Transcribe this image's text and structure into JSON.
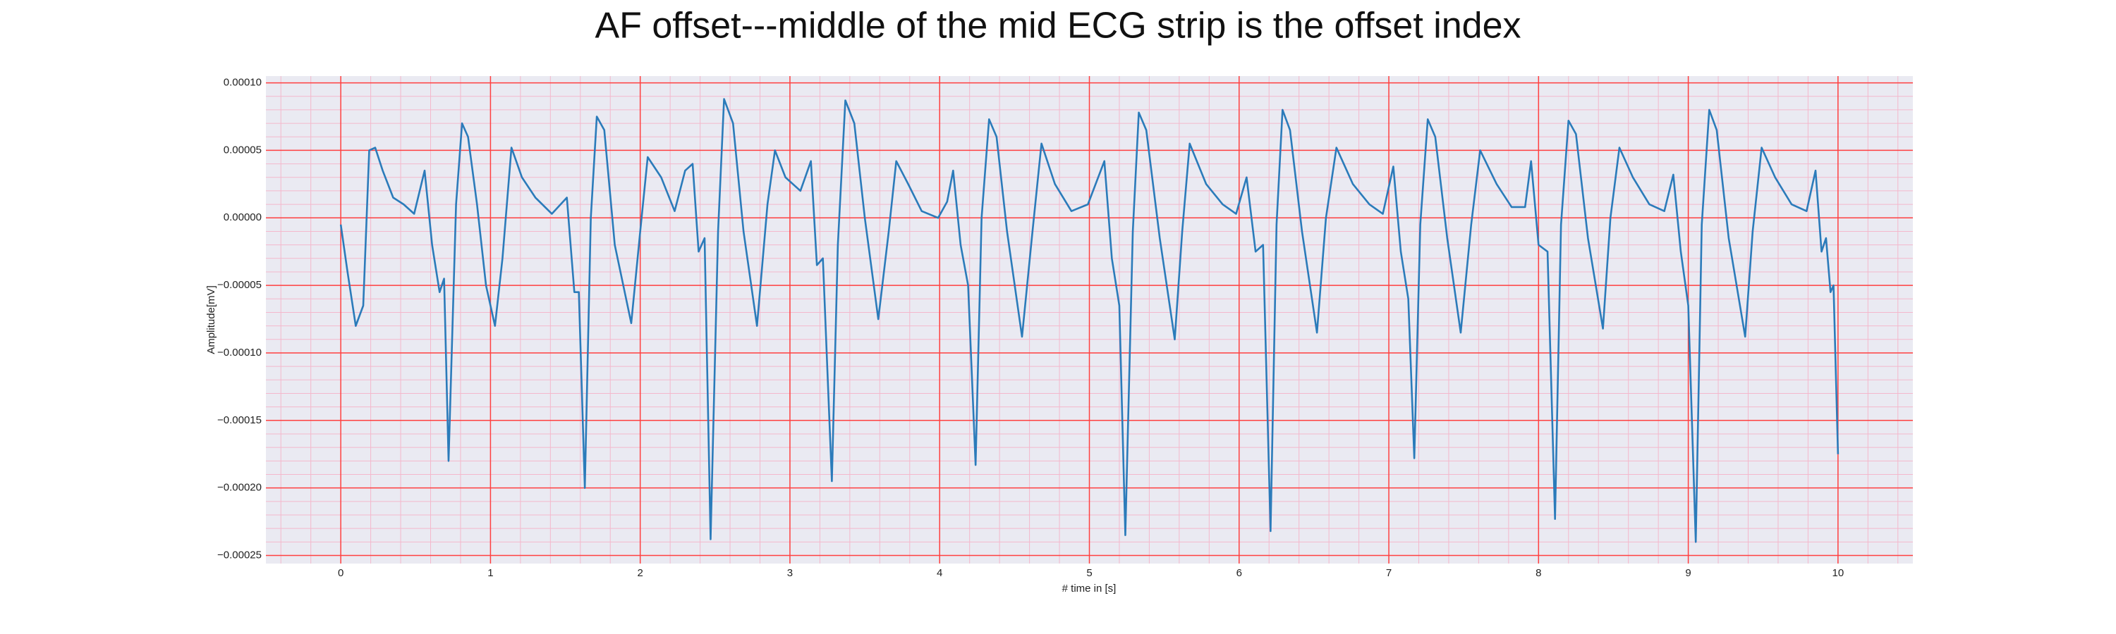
{
  "chart_data": {
    "type": "line",
    "title": "AF offset---middle of the mid ECG strip is the offset index",
    "xlabel": "# time in [s]",
    "ylabel": "Amplitude[mV]",
    "color": "#2b7bba",
    "background": "#eaeaf2",
    "grid": true,
    "grid_color": "#ff4040",
    "minor_grid": true,
    "minor_grid_color": "#f4b8cc",
    "xlim": [
      -0.5,
      10.5
    ],
    "xticks": [
      0,
      1,
      2,
      3,
      4,
      5,
      6,
      7,
      8,
      9,
      10
    ],
    "ylim": [
      -0.000256,
      0.000105
    ],
    "yticks": [
      {
        "value": 0.0001,
        "label": "0.00010"
      },
      {
        "value": 5e-05,
        "label": "0.00005"
      },
      {
        "value": 0,
        "label": "0.00000"
      },
      {
        "value": -5e-05,
        "label": "−0.00005"
      },
      {
        "value": -0.0001,
        "label": "−0.00010"
      },
      {
        "value": -0.00015,
        "label": "−0.00015"
      },
      {
        "value": -0.0002,
        "label": "−0.00020"
      },
      {
        "value": -0.00025,
        "label": "−0.00025"
      }
    ],
    "x": [
      0,
      0.045,
      0.1,
      0.15,
      0.19,
      0.23,
      0.28,
      0.35,
      0.42,
      0.49,
      0.56,
      0.61,
      0.66,
      0.69,
      0.72,
      0.77,
      0.81,
      0.85,
      0.91,
      0.97,
      1.03,
      1.08,
      1.14,
      1.21,
      1.3,
      1.41,
      1.51,
      1.56,
      1.59,
      1.63,
      1.67,
      1.71,
      1.76,
      1.83,
      1.94,
      2.0,
      2.05,
      2.14,
      2.23,
      2.3,
      2.35,
      2.39,
      2.43,
      2.47,
      2.52,
      2.56,
      2.62,
      2.69,
      2.78,
      2.85,
      2.9,
      2.97,
      3.07,
      3.14,
      3.18,
      3.22,
      3.28,
      3.32,
      3.37,
      3.43,
      3.5,
      3.59,
      3.66,
      3.71,
      3.79,
      3.88,
      3.99,
      4.05,
      4.09,
      4.14,
      4.19,
      4.24,
      4.28,
      4.33,
      4.38,
      4.45,
      4.55,
      4.62,
      4.68,
      4.77,
      4.88,
      4.99,
      5.1,
      5.15,
      5.2,
      5.24,
      5.29,
      5.33,
      5.38,
      5.47,
      5.57,
      5.62,
      5.67,
      5.78,
      5.89,
      5.98,
      6.05,
      6.11,
      6.16,
      6.21,
      6.25,
      6.29,
      6.34,
      6.42,
      6.52,
      6.58,
      6.65,
      6.76,
      6.87,
      6.96,
      7.03,
      7.08,
      7.13,
      7.17,
      7.21,
      7.26,
      7.31,
      7.39,
      7.48,
      7.55,
      7.61,
      7.72,
      7.82,
      7.91,
      7.95,
      8.0,
      8.06,
      8.11,
      8.15,
      8.2,
      8.25,
      8.33,
      8.43,
      8.48,
      8.54,
      8.63,
      8.74,
      8.84,
      8.9,
      8.95,
      9.0,
      9.05,
      9.09,
      9.14,
      9.19,
      9.27,
      9.38,
      9.43,
      9.49,
      9.58,
      9.69,
      9.79,
      9.85,
      9.89,
      9.92,
      9.95,
      9.97,
      10
    ],
    "values": [
      -5e-06,
      -4e-05,
      -8e-05,
      -6.5e-05,
      5e-05,
      5.2e-05,
      3.5e-05,
      1.5e-05,
      1e-05,
      3e-06,
      3.5e-05,
      -2e-05,
      -5.5e-05,
      -4.5e-05,
      -0.00018,
      1e-05,
      7e-05,
      6e-05,
      1e-05,
      -5e-05,
      -8e-05,
      -3e-05,
      5.2e-05,
      3e-05,
      1.5e-05,
      3e-06,
      1.5e-05,
      -5.5e-05,
      -5.5e-05,
      -0.0002,
      0,
      7.5e-05,
      6.5e-05,
      -2e-05,
      -7.8e-05,
      -1e-05,
      4.5e-05,
      3e-05,
      5e-06,
      3.5e-05,
      4e-05,
      -2.5e-05,
      -1.5e-05,
      -0.000238,
      -1e-05,
      8.8e-05,
      7e-05,
      -1e-05,
      -8e-05,
      1e-05,
      5e-05,
      3e-05,
      2e-05,
      4.2e-05,
      -3.5e-05,
      -3e-05,
      -0.000195,
      -2e-05,
      8.7e-05,
      7e-05,
      0,
      -7.5e-05,
      -1e-05,
      4.2e-05,
      2.5e-05,
      5e-06,
      0,
      1.2e-05,
      3.5e-05,
      -2e-05,
      -5e-05,
      -0.000183,
      0,
      7.3e-05,
      6e-05,
      -1e-05,
      -8.8e-05,
      -1e-05,
      5.5e-05,
      2.5e-05,
      5e-06,
      1e-05,
      4.2e-05,
      -3e-05,
      -6.5e-05,
      -0.000235,
      -1e-05,
      7.8e-05,
      6.5e-05,
      -1.5e-05,
      -9e-05,
      -1e-05,
      5.5e-05,
      2.5e-05,
      1e-05,
      3e-06,
      3e-05,
      -2.5e-05,
      -2e-05,
      -0.000232,
      -5e-06,
      8e-05,
      6.5e-05,
      -1e-05,
      -8.5e-05,
      0,
      5.2e-05,
      2.5e-05,
      1e-05,
      3e-06,
      3.8e-05,
      -2.5e-05,
      -6e-05,
      -0.000178,
      -5e-06,
      7.3e-05,
      6e-05,
      -1.5e-05,
      -8.5e-05,
      -5e-06,
      5e-05,
      2.5e-05,
      8e-06,
      8e-06,
      4.2e-05,
      -2e-05,
      -2.5e-05,
      -0.000223,
      -5e-06,
      7.2e-05,
      6.2e-05,
      -1.5e-05,
      -8.2e-05,
      0,
      5.2e-05,
      3e-05,
      1e-05,
      5e-06,
      3.2e-05,
      -2.5e-05,
      -6.5e-05,
      -0.00024,
      -5e-06,
      8e-05,
      6.5e-05,
      -1.5e-05,
      -8.8e-05,
      -1e-05,
      5.2e-05,
      3e-05,
      1e-05,
      5e-06,
      3.5e-05,
      -2.5e-05,
      -1.5e-05,
      -5.5e-05,
      -5e-05,
      -0.000175
    ]
  }
}
